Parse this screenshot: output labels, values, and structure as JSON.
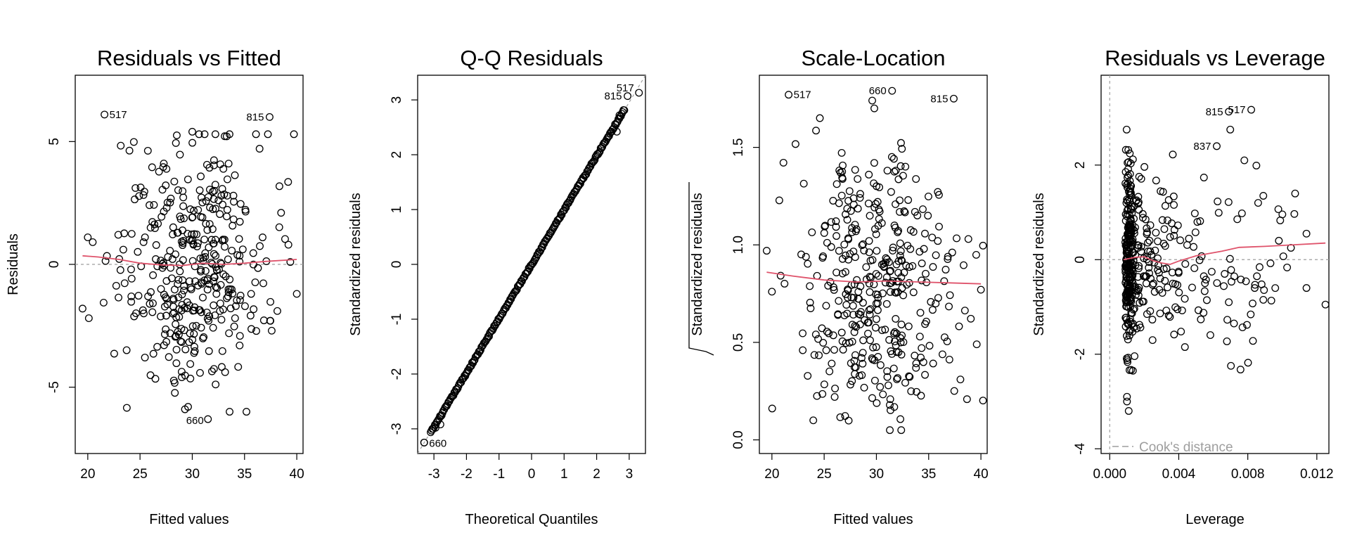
{
  "colors": {
    "smooth": "#DF536B",
    "reference": "#9E9E9E",
    "point": "#000000"
  },
  "chart_data": [
    {
      "id": "rvf",
      "type": "scatter",
      "title": "Residuals vs Fitted",
      "xlabel": "Fitted values",
      "ylabel": "Residuals",
      "xlim": [
        18.8,
        40.6
      ],
      "ylim": [
        -7.7,
        7.7
      ],
      "xticks": [
        20,
        25,
        30,
        35,
        40
      ],
      "xtick_labels": [
        "20",
        "25",
        "30",
        "35",
        "40"
      ],
      "yticks": [
        -5,
        0,
        5
      ],
      "ytick_labels": [
        "-5",
        "0",
        "5"
      ],
      "reference_line": {
        "kind": "hline",
        "value": 0
      },
      "smooth": [
        [
          19.5,
          0.35
        ],
        [
          21,
          0.3
        ],
        [
          23,
          0.2
        ],
        [
          25,
          0.05
        ],
        [
          27,
          -0.02
        ],
        [
          29,
          -0.05
        ],
        [
          31,
          0.05
        ],
        [
          33,
          0.0
        ],
        [
          35,
          0.05
        ],
        [
          37,
          0.12
        ],
        [
          40,
          0.2
        ]
      ],
      "labeled_points": [
        {
          "label": "517",
          "x": 21.6,
          "y": 6.1
        },
        {
          "label": "815",
          "x": 37.4,
          "y": 6.0
        },
        {
          "label": "660",
          "x": 31.5,
          "y": -6.3
        }
      ],
      "cloud": {
        "n": 380,
        "x_center": 30,
        "x_sd": 3.6,
        "x_min": 19.4,
        "x_max": 40.2,
        "y_sd": 2.5,
        "y_min": -6.0,
        "y_max": 5.3
      },
      "extra_points": [
        [
          19.5,
          -1.8
        ],
        [
          20.0,
          1.1
        ],
        [
          40.0,
          -1.2
        ],
        [
          39.2,
          0.8
        ],
        [
          38.5,
          2.1
        ],
        [
          37.6,
          -2.7
        ],
        [
          29.6,
          -5.8
        ],
        [
          29.3,
          -5.9
        ],
        [
          30.0,
          5.4
        ]
      ]
    },
    {
      "id": "qq",
      "type": "scatter",
      "title": "Q-Q Residuals",
      "xlabel": "Theoretical Quantiles",
      "ylabel": "Standardized residuals",
      "xlim": [
        -3.5,
        3.5
      ],
      "ylim": [
        -3.45,
        3.45
      ],
      "xticks": [
        -3,
        -2,
        -1,
        0,
        1,
        2,
        3
      ],
      "xtick_labels": [
        "-3",
        "-2",
        "-1",
        "0",
        "1",
        "2",
        "3"
      ],
      "yticks": [
        -3,
        -2,
        -1,
        0,
        1,
        2,
        3
      ],
      "ytick_labels": [
        "-3",
        "-2",
        "-1",
        "0",
        "1",
        "2",
        "3"
      ],
      "reference_line": {
        "kind": "diagonal",
        "from": [
          -3.5,
          -3.45
        ],
        "to": [
          3.5,
          3.45
        ]
      },
      "labeled_points": [
        {
          "label": "815",
          "x": 2.95,
          "y": 3.07
        },
        {
          "label": "517",
          "x": 3.3,
          "y": 3.13
        },
        {
          "label": "660",
          "x": -3.3,
          "y": -3.25
        }
      ],
      "quantiles": {
        "n": 230,
        "x_range": [
          -3.1,
          2.85
        ],
        "slope": 0.99,
        "tail_points": [
          [
            -3.3,
            -3.25
          ],
          [
            -2.95,
            -2.98
          ],
          [
            -2.8,
            -2.92
          ],
          [
            2.7,
            2.72
          ],
          [
            2.62,
            2.42
          ]
        ]
      }
    },
    {
      "id": "sl",
      "type": "scatter",
      "title": "Scale-Location",
      "xlabel": "Fitted values",
      "ylabel": "Standardized residuals",
      "xlim": [
        18.8,
        40.6
      ],
      "ylim": [
        -0.07,
        1.87
      ],
      "xticks": [
        20,
        25,
        30,
        35,
        40
      ],
      "xtick_labels": [
        "20",
        "25",
        "30",
        "35",
        "40"
      ],
      "yticks": [
        0.0,
        0.5,
        1.0,
        1.5
      ],
      "ytick_labels": [
        "0.0",
        "0.5",
        "1.0",
        "1.5"
      ],
      "smooth": [
        [
          19.5,
          0.86
        ],
        [
          22,
          0.84
        ],
        [
          25,
          0.82
        ],
        [
          28,
          0.81
        ],
        [
          31,
          0.815
        ],
        [
          34,
          0.81
        ],
        [
          37,
          0.805
        ],
        [
          40,
          0.8
        ]
      ],
      "labeled_points": [
        {
          "label": "517",
          "x": 21.6,
          "y": 1.77
        },
        {
          "label": "660",
          "x": 31.5,
          "y": 1.79
        },
        {
          "label": "815",
          "x": 37.4,
          "y": 1.75
        }
      ],
      "cloud": {
        "n": 380,
        "x_center": 30,
        "x_sd": 3.6,
        "x_min": 19.4,
        "x_max": 40.2,
        "y_min": 0.05,
        "y_max": 1.65
      },
      "extra_points": [
        [
          19.5,
          0.97
        ],
        [
          20.0,
          0.76
        ],
        [
          40.0,
          0.77
        ],
        [
          39.6,
          0.49
        ],
        [
          38.8,
          1.03
        ],
        [
          29.8,
          1.7
        ],
        [
          29.6,
          1.74
        ]
      ]
    },
    {
      "id": "rvl",
      "type": "scatter",
      "title": "Residuals vs Leverage",
      "xlabel": "Leverage",
      "ylabel": "Standardized residuals",
      "xlim": [
        -0.0005,
        0.0127
      ],
      "ylim": [
        -4.1,
        3.9
      ],
      "xticks": [
        0,
        0.004,
        0.008,
        0.012
      ],
      "xtick_labels": [
        "0.000",
        "0.004",
        "0.008",
        "0.012"
      ],
      "yticks": [
        -4,
        -2,
        0,
        2
      ],
      "ytick_labels": [
        "-4",
        "-2",
        "0",
        "2"
      ],
      "reference_line": {
        "kind": "hline",
        "value": 0,
        "vline": 0
      },
      "smooth": [
        [
          0.0008,
          0.0
        ],
        [
          0.0015,
          0.05
        ],
        [
          0.002,
          0.06
        ],
        [
          0.0025,
          -0.02
        ],
        [
          0.003,
          -0.07
        ],
        [
          0.0035,
          -0.1
        ],
        [
          0.004,
          -0.03
        ],
        [
          0.005,
          0.08
        ],
        [
          0.0065,
          0.18
        ],
        [
          0.0075,
          0.26
        ],
        [
          0.009,
          0.28
        ],
        [
          0.0105,
          0.31
        ],
        [
          0.0125,
          0.35
        ]
      ],
      "labeled_points": [
        {
          "label": "815",
          "x": 0.0069,
          "y": 3.13
        },
        {
          "label": "517",
          "x": 0.0082,
          "y": 3.17
        },
        {
          "label": "837",
          "x": 0.0062,
          "y": 2.4
        }
      ],
      "legend": {
        "label": "Cook's distance",
        "position": "bottom-left"
      },
      "cloud": {
        "n": 420,
        "x_min": 0.0009,
        "x_max": 0.0125,
        "y_sd": 1.0,
        "y_min": -3.25,
        "y_max": 2.75
      },
      "extra_points": [
        [
          0.0125,
          -0.95
        ],
        [
          0.0114,
          0.55
        ],
        [
          0.0114,
          -0.6
        ],
        [
          0.0105,
          0.25
        ],
        [
          0.0098,
          0.4
        ],
        [
          0.0089,
          1.35
        ],
        [
          0.0089,
          -0.85
        ],
        [
          0.0086,
          1.2
        ],
        [
          0.0084,
          -0.6
        ],
        [
          0.0078,
          2.1
        ],
        [
          0.0076,
          -0.42
        ],
        [
          0.0072,
          -1.35
        ],
        [
          0.0069,
          -0.9
        ],
        [
          0.001,
          -3.0
        ],
        [
          0.001,
          -2.9
        ],
        [
          0.0011,
          -3.2
        ]
      ]
    }
  ]
}
